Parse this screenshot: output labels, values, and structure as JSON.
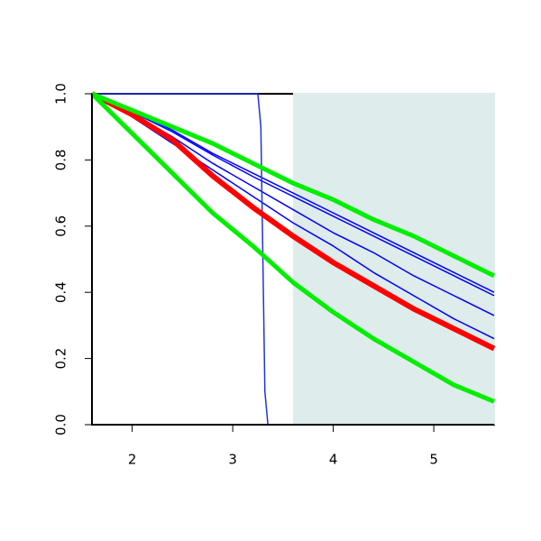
{
  "chart_data": {
    "type": "line",
    "x": [
      1.6,
      2.0,
      2.4,
      2.8,
      3.2,
      3.6,
      4.0,
      4.4,
      4.8,
      5.2,
      5.6
    ],
    "xlim": [
      1.6,
      5.6
    ],
    "xticks": [
      2,
      3,
      4,
      5
    ],
    "ylim": [
      0,
      1
    ],
    "yticks": [
      {
        "value": 0,
        "label": "0.0"
      },
      0.2,
      0.4,
      0.6,
      0.8,
      {
        "value": 1,
        "label": "1.0"
      }
    ],
    "shade": [
      3.6,
      5.6
    ],
    "shade_color": "#deeceb",
    "series": [
      {
        "color": "#0000ff",
        "width": 1.5,
        "values": [
          1,
          0.95,
          0.89,
          0.82,
          0.76,
          0.7,
          0.64,
          0.58,
          0.52,
          0.46,
          0.4
        ]
      },
      {
        "color": "#0000ff",
        "width": 1.5,
        "values": [
          1,
          0.945,
          0.885,
          0.815,
          0.75,
          0.69,
          0.63,
          0.57,
          0.51,
          0.45,
          0.39
        ]
      },
      {
        "color": "#0000ff",
        "width": 1.5,
        "values": [
          1,
          0.94,
          0.87,
          0.79,
          0.72,
          0.65,
          0.58,
          0.52,
          0.45,
          0.39,
          0.33
        ]
      },
      {
        "color": "#0000ff",
        "width": 1.5,
        "values": [
          1,
          0.93,
          0.85,
          0.77,
          0.69,
          0.61,
          0.54,
          0.46,
          0.39,
          0.32,
          0.26
        ]
      },
      {
        "color": "#2233dd",
        "width": 1.5,
        "x": [
          1.6,
          3.25,
          3.28,
          3.3,
          3.32,
          3.35,
          5.6
        ],
        "values": [
          1,
          1,
          0.9,
          0.5,
          0.1,
          0,
          0
        ]
      },
      {
        "color": "#ff0000",
        "width": 6,
        "values": [
          1,
          0.937,
          0.861,
          0.752,
          0.657,
          0.57,
          0.49,
          0.42,
          0.35,
          0.29,
          0.23
        ]
      },
      {
        "color": "#00ee00",
        "width": 5,
        "values": [
          1,
          0.95,
          0.9,
          0.85,
          0.79,
          0.73,
          0.68,
          0.62,
          0.57,
          0.51,
          0.45
        ]
      },
      {
        "color": "#00ee00",
        "width": 5,
        "values": [
          1,
          0.88,
          0.76,
          0.64,
          0.54,
          0.43,
          0.34,
          0.26,
          0.19,
          0.12,
          0.07
        ]
      }
    ]
  }
}
